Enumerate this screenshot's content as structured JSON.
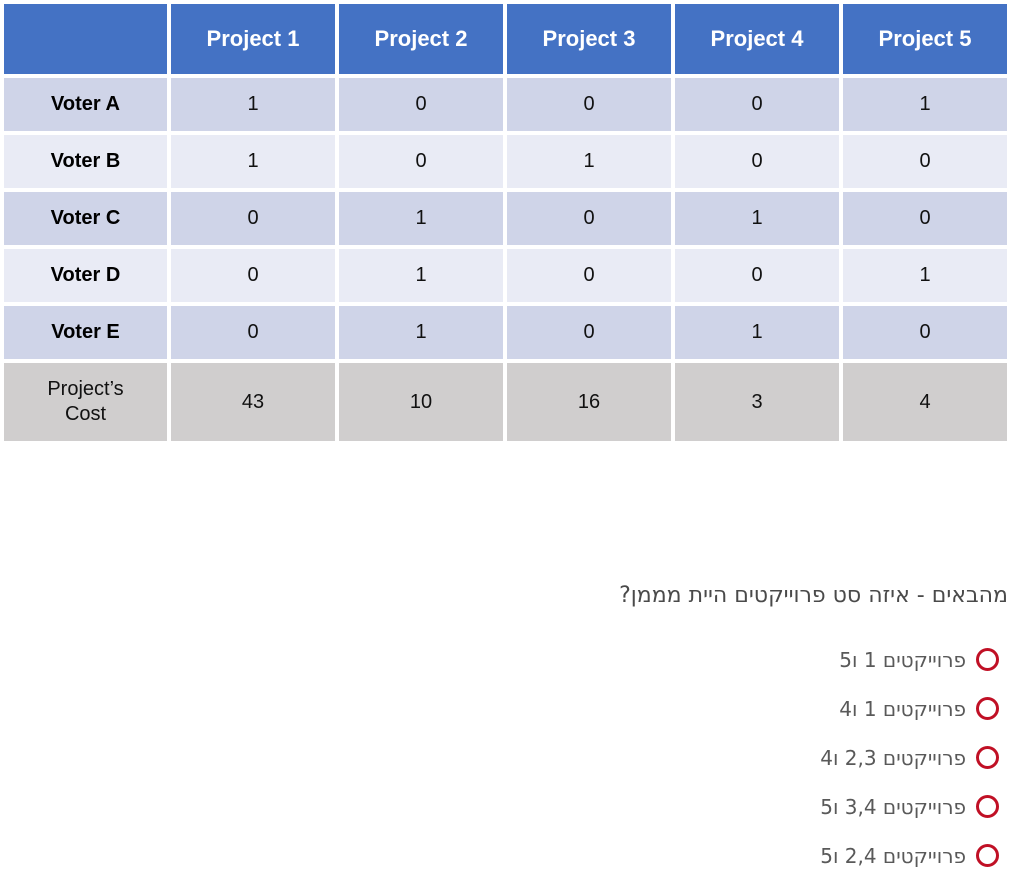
{
  "colors": {
    "header_bg": "#4472C4",
    "band_dark": "#CFD4E8",
    "band_light": "#E9EBF5",
    "cost_bg": "#D0CECE",
    "radio_ring": "#C01025",
    "question_color": "#4a4a4a",
    "option_color": "#595959"
  },
  "table": {
    "corner_label": "",
    "column_headers": [
      "Project 1",
      "Project 2",
      "Project 3",
      "Project 4",
      "Project 5"
    ],
    "rows": [
      {
        "label": "Voter A",
        "values": [
          "1",
          "0",
          "0",
          "0",
          "1"
        ]
      },
      {
        "label": "Voter B",
        "values": [
          "1",
          "0",
          "1",
          "0",
          "0"
        ]
      },
      {
        "label": "Voter C",
        "values": [
          "0",
          "1",
          "0",
          "1",
          "0"
        ]
      },
      {
        "label": "Voter D",
        "values": [
          "0",
          "1",
          "0",
          "0",
          "1"
        ]
      },
      {
        "label": "Voter E",
        "values": [
          "0",
          "1",
          "0",
          "1",
          "0"
        ]
      }
    ],
    "cost_row": {
      "label": "Project’s Cost",
      "values": [
        "43",
        "10",
        "16",
        "3",
        "4"
      ]
    }
  },
  "question": {
    "text": "מהבאים - איזה סט פרוייקטים היית מממן?"
  },
  "options": [
    {
      "label": "פרוייקטים 1 ו5"
    },
    {
      "label": "פרוייקטים 1 ו4"
    },
    {
      "label": "פרוייקטים 2,3 ו4"
    },
    {
      "label": "פרוייקטים 3,4 ו5"
    },
    {
      "label": "פרוייקטים 2,4 ו5"
    }
  ]
}
